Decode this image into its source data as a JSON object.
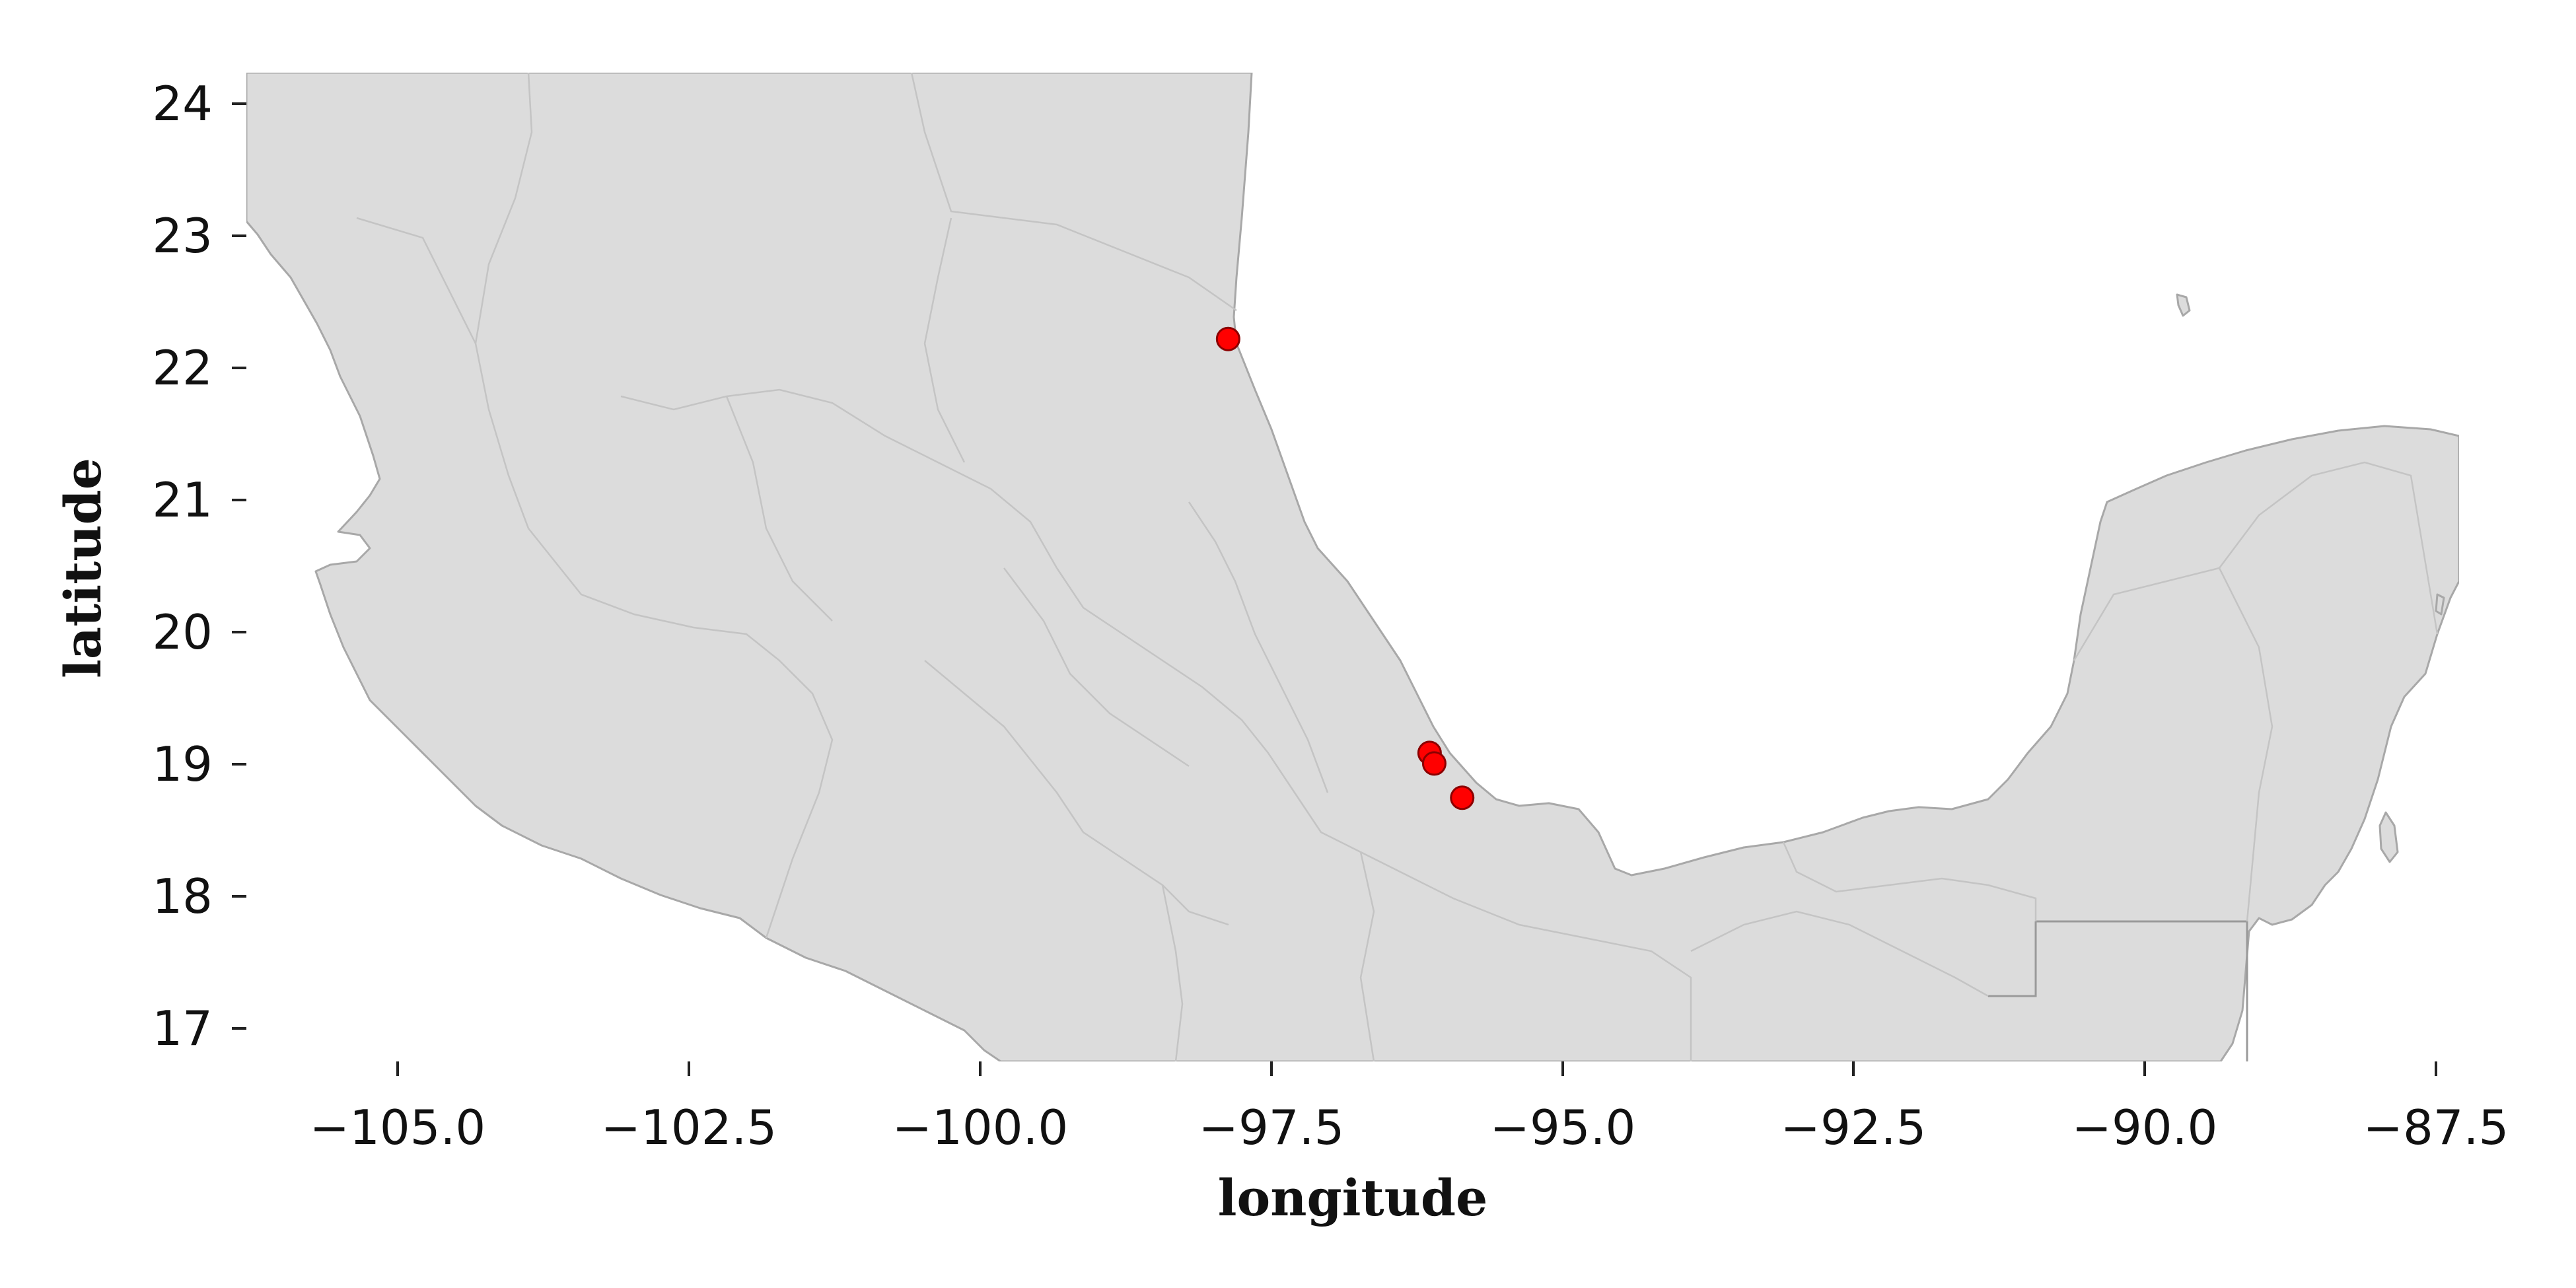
{
  "chart_data": {
    "type": "scatter",
    "title": "",
    "xlabel": "longitude",
    "ylabel": "latitude",
    "xlim": [
      -106.3,
      -87.3
    ],
    "ylim": [
      16.75,
      24.25
    ],
    "x_ticks": [
      -105.0,
      -102.5,
      -100.0,
      -97.5,
      -95.0,
      -92.5,
      -90.0,
      -87.5
    ],
    "x_tick_labels": [
      "−105.0",
      "−102.5",
      "−100.0",
      "−97.5",
      "−95.0",
      "−92.5",
      "−90.0",
      "−87.5"
    ],
    "y_ticks": [
      17,
      18,
      19,
      20,
      21,
      22,
      23,
      24
    ],
    "y_tick_labels": [
      "17",
      "18",
      "19",
      "20",
      "21",
      "22",
      "23",
      "24"
    ],
    "grid": false,
    "basemap": "central and southern Mexico with state boundaries",
    "colors": {
      "land": "#dcdcdc",
      "borders": "#a8a8a8",
      "point_fill": "#ff0000",
      "point_edge": "#8b0000"
    },
    "points": [
      {
        "lon": -97.87,
        "lat": 22.23
      },
      {
        "lon": -96.14,
        "lat": 19.09
      },
      {
        "lon": -96.1,
        "lat": 19.01
      },
      {
        "lon": -95.86,
        "lat": 18.75
      }
    ]
  }
}
